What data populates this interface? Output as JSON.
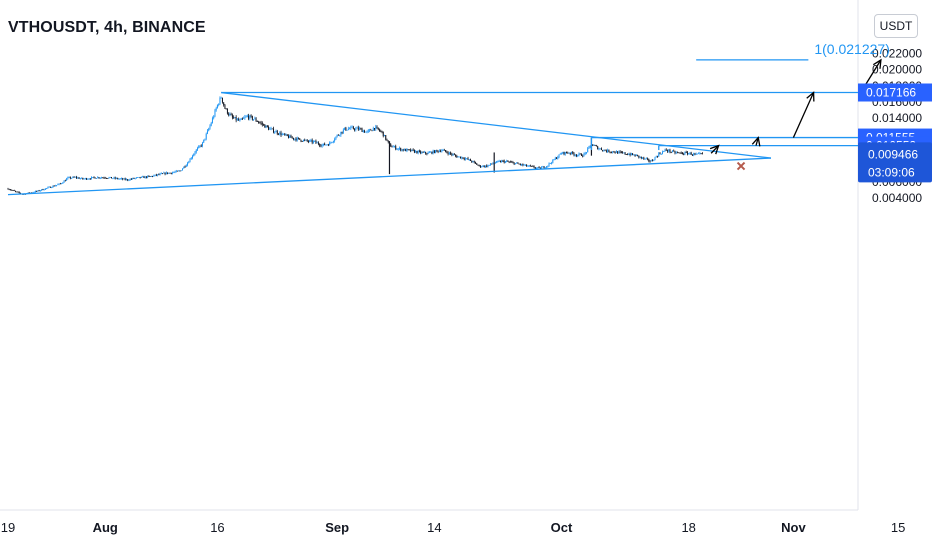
{
  "header": {
    "title": "VTHOUSDT, 4h, BINANCE",
    "unit": "USDT"
  },
  "colors": {
    "line": "#2196f3",
    "tag_bg": "#2962ff",
    "current_bg": "#1e56d8",
    "candle": "#131722",
    "arrow": "#000000",
    "cross": "#b55a4c"
  },
  "chart_data": {
    "type": "candlestick",
    "symbol": "VTHOUSDT",
    "interval": "4h",
    "exchange": "BINANCE",
    "xlabel": "",
    "ylabel": "",
    "y_ticks": [
      "0.022000",
      "0.020000",
      "0.018000",
      "0.016000",
      "0.014000",
      "0.012000",
      "0.010000",
      "0.008000",
      "0.006000",
      "0.004000"
    ],
    "x_ticks": [
      {
        "label": "19",
        "day": 0
      },
      {
        "label": "Aug",
        "day": 13,
        "bold": true
      },
      {
        "label": "16",
        "day": 28
      },
      {
        "label": "Sep",
        "day": 44,
        "bold": true
      },
      {
        "label": "14",
        "day": 57
      },
      {
        "label": "Oct",
        "day": 74,
        "bold": true
      },
      {
        "label": "18",
        "day": 91
      },
      {
        "label": "Nov",
        "day": 105,
        "bold": true
      },
      {
        "label": "15",
        "day": 119
      }
    ],
    "price_path": [
      [
        0,
        0.0052
      ],
      [
        1,
        0.0048
      ],
      [
        2,
        0.0045
      ],
      [
        3,
        0.0047
      ],
      [
        4,
        0.0049
      ],
      [
        5,
        0.0052
      ],
      [
        6,
        0.0055
      ],
      [
        7,
        0.0058
      ],
      [
        8,
        0.0065
      ],
      [
        9,
        0.0066
      ],
      [
        10,
        0.0064
      ],
      [
        11,
        0.0065
      ],
      [
        12,
        0.0066
      ],
      [
        13,
        0.0066
      ],
      [
        14,
        0.0065
      ],
      [
        15,
        0.0064
      ],
      [
        16,
        0.0063
      ],
      [
        17,
        0.0065
      ],
      [
        18,
        0.0066
      ],
      [
        19,
        0.0067
      ],
      [
        20,
        0.0069
      ],
      [
        21,
        0.0071
      ],
      [
        22,
        0.0072
      ],
      [
        23,
        0.0074
      ],
      [
        24,
        0.0084
      ],
      [
        25,
        0.0098
      ],
      [
        26,
        0.0108
      ],
      [
        27,
        0.013
      ],
      [
        28,
        0.0156
      ],
      [
        28.5,
        0.0166
      ],
      [
        29,
        0.0152
      ],
      [
        29.5,
        0.0145
      ],
      [
        30,
        0.014
      ],
      [
        31,
        0.0136
      ],
      [
        32,
        0.0142
      ],
      [
        33,
        0.0138
      ],
      [
        34,
        0.0132
      ],
      [
        35,
        0.0126
      ],
      [
        36,
        0.0122
      ],
      [
        37,
        0.0118
      ],
      [
        38,
        0.0115
      ],
      [
        39,
        0.0113
      ],
      [
        40,
        0.0111
      ],
      [
        41,
        0.011
      ],
      [
        42,
        0.0106
      ],
      [
        43,
        0.0108
      ],
      [
        44,
        0.0118
      ],
      [
        45,
        0.0126
      ],
      [
        46,
        0.0127
      ],
      [
        47,
        0.0126
      ],
      [
        48,
        0.0122
      ],
      [
        49,
        0.0128
      ],
      [
        50,
        0.0122
      ],
      [
        51,
        0.0106
      ],
      [
        52,
        0.0102
      ],
      [
        53,
        0.01
      ],
      [
        54,
        0.0099
      ],
      [
        55,
        0.0097
      ],
      [
        56,
        0.0096
      ],
      [
        57,
        0.0098
      ],
      [
        58,
        0.01
      ],
      [
        59,
        0.0096
      ],
      [
        60,
        0.0092
      ],
      [
        61,
        0.009
      ],
      [
        62,
        0.0086
      ],
      [
        63,
        0.008
      ],
      [
        64,
        0.008
      ],
      [
        65,
        0.0084
      ],
      [
        66,
        0.0086
      ],
      [
        67,
        0.0085
      ],
      [
        68,
        0.0083
      ],
      [
        69,
        0.0081
      ],
      [
        70,
        0.0079
      ],
      [
        71,
        0.0077
      ],
      [
        72,
        0.008
      ],
      [
        73,
        0.0088
      ],
      [
        74,
        0.0096
      ],
      [
        75,
        0.0097
      ],
      [
        76,
        0.0094
      ],
      [
        77,
        0.0094
      ],
      [
        78,
        0.0107
      ],
      [
        79,
        0.0102
      ],
      [
        80,
        0.0099
      ],
      [
        81,
        0.0098
      ],
      [
        82,
        0.0096
      ],
      [
        83,
        0.0095
      ],
      [
        84,
        0.0093
      ],
      [
        85,
        0.0089
      ],
      [
        86,
        0.0086
      ],
      [
        87,
        0.0095
      ],
      [
        88,
        0.01
      ],
      [
        89,
        0.0097
      ],
      [
        90,
        0.0096
      ],
      [
        91,
        0.0096
      ],
      [
        92,
        0.0094
      ],
      [
        93,
        0.0095
      ]
    ],
    "wicks": [
      {
        "day": 51,
        "low": 0.007,
        "high": 0.0111
      },
      {
        "day": 65,
        "low": 0.0072,
        "high": 0.0097
      },
      {
        "day": 78,
        "low": 0.0093,
        "high": 0.011555
      }
    ],
    "trendlines": [
      {
        "name": "support",
        "from": [
          0,
          0.00445
        ],
        "to": [
          102,
          0.009
        ]
      },
      {
        "name": "resistance",
        "from": [
          28.5,
          0.01716
        ],
        "to": [
          102,
          0.009
        ]
      }
    ],
    "levels": [
      {
        "name": "resistance-top",
        "value": 0.017166,
        "from_day": 28.5,
        "label": "0.017166"
      },
      {
        "name": "resistance-mid",
        "value": 0.011555,
        "from_day": 78,
        "label": "0.011555"
      },
      {
        "name": "resistance-low",
        "value": 0.010552,
        "from_day": 87,
        "label": "0.010552"
      }
    ],
    "target": {
      "label": "1(0.021227)",
      "value": 0.021227,
      "from_day": 92,
      "to_day": 107
    },
    "projection_arrows": [
      {
        "from": [
          94,
          0.0096
        ],
        "to": [
          95,
          0.010552
        ]
      },
      {
        "from": [
          100,
          0.010552
        ],
        "to": [
          100.3,
          0.011555
        ]
      },
      {
        "from": [
          105,
          0.011555
        ],
        "to": [
          107.7,
          0.017166
        ]
      },
      {
        "from": [
          114,
          0.017166
        ],
        "to": [
          116.7,
          0.021227
        ]
      }
    ],
    "invalidation_marker": {
      "day": 98,
      "value": 0.008
    },
    "current_price": {
      "label": "0.009466",
      "countdown": "03:09:06",
      "value": 0.009466
    }
  }
}
